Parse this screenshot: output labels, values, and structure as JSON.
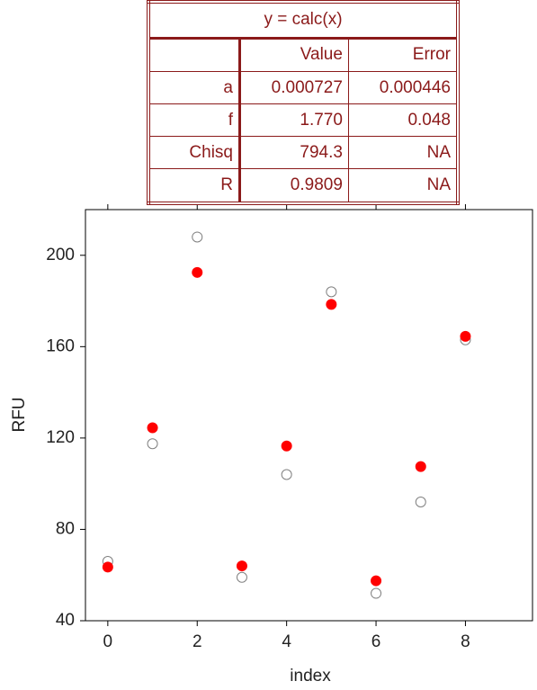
{
  "chart_data": {
    "type": "scatter",
    "xlabel": "index",
    "ylabel": "RFU",
    "x": [
      0,
      1,
      2,
      3,
      4,
      5,
      6,
      7,
      8
    ],
    "series": [
      {
        "color": "#808080",
        "filled": false,
        "values": [
          66,
          117.5,
          208,
          59,
          104,
          184,
          52,
          92,
          163
        ]
      },
      {
        "color": "#ff0000",
        "filled": true,
        "values": [
          63.5,
          124.5,
          192.5,
          64,
          116.5,
          178.5,
          57.5,
          107.5,
          164.5
        ]
      }
    ],
    "xlim": [
      -0.5,
      9.5
    ],
    "xticks": [
      0,
      2,
      4,
      6,
      8
    ],
    "ylim": [
      40,
      220
    ],
    "yticks": [
      40,
      80,
      120,
      160,
      200
    ]
  },
  "fit_table": {
    "title": "y = calc(x)",
    "columns": [
      "Value",
      "Error"
    ],
    "rows": [
      {
        "label": "a",
        "values": [
          "0.000727",
          "0.000446"
        ]
      },
      {
        "label": "f",
        "values": [
          "1.770",
          "0.048"
        ]
      },
      {
        "label": "Chisq",
        "values": [
          "794.3",
          "NA"
        ]
      },
      {
        "label": "R",
        "values": [
          "0.9809",
          "NA"
        ]
      }
    ]
  }
}
